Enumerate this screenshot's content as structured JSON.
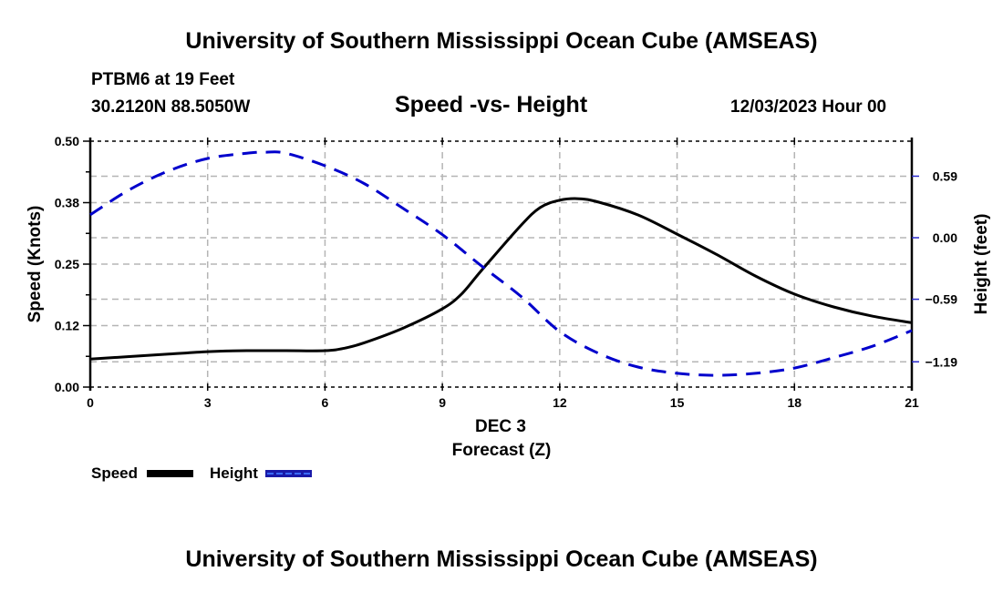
{
  "header": {
    "title": "University of Southern Mississippi Ocean Cube (AMSEAS)",
    "station": "PTBM6 at 19 Feet",
    "coords": "30.2120N  88.5050W",
    "datetime": "12/03/2023 Hour 00"
  },
  "footer": {
    "title": "University of Southern Mississippi Ocean Cube (AMSEAS)"
  },
  "legend": {
    "items": [
      {
        "label": "Speed",
        "color": "#000000",
        "style": "solid"
      },
      {
        "label": "Height",
        "color": "#0000cc",
        "style": "dashed"
      }
    ]
  },
  "chart_data": {
    "type": "line",
    "title": "Speed -vs- Height",
    "xlabel": "Forecast (Z)",
    "xlabel_date": "DEC 3",
    "ylabel": "Speed (Knots)",
    "y2label": "Height (feet)",
    "xlim": [
      0,
      21
    ],
    "ylim": [
      0,
      0.5
    ],
    "y2lim": [
      -1.49,
      0.87
    ],
    "x_ticks": [
      0,
      3,
      6,
      9,
      12,
      15,
      18,
      21
    ],
    "x_tick_labels": [
      "0",
      "3",
      "6",
      "9",
      "12",
      "15",
      "18",
      "21"
    ],
    "y_ticks": [
      0,
      0.125,
      0.25,
      0.375,
      0.5
    ],
    "y_tick_labels": [
      "0.00",
      "0.12",
      "0.25",
      "0.38",
      "0.50"
    ],
    "y2_ticks": [
      0.59,
      0,
      -0.59,
      -1.19
    ],
    "y2_tick_labels": [
      "0.59",
      "0.00",
      "−0.59",
      "−1.19"
    ],
    "grid": true,
    "legend_position": "bottom-left",
    "series": [
      {
        "name": "Speed",
        "axis": "left",
        "color": "#000000",
        "dash": "solid",
        "x": [
          0,
          1,
          2,
          3,
          4,
          5,
          6,
          6.5,
          7,
          8,
          9,
          9.5,
          10,
          11,
          11.5,
          12,
          12.5,
          13,
          14,
          15,
          16,
          17,
          18,
          19,
          20,
          21
        ],
        "values": [
          0.057,
          0.062,
          0.067,
          0.072,
          0.074,
          0.074,
          0.074,
          0.079,
          0.09,
          0.12,
          0.159,
          0.19,
          0.237,
          0.328,
          0.365,
          0.38,
          0.383,
          0.376,
          0.35,
          0.311,
          0.27,
          0.226,
          0.189,
          0.163,
          0.144,
          0.131
        ]
      },
      {
        "name": "Height",
        "axis": "right",
        "color": "#0000cc",
        "dash": "dashed",
        "x": [
          0,
          1,
          2,
          3,
          4,
          4.5,
          5,
          6,
          7,
          8,
          9,
          10,
          11,
          12,
          13,
          14,
          15,
          16,
          17,
          18,
          19,
          20,
          21
        ],
        "values": [
          0.22,
          0.46,
          0.64,
          0.76,
          0.81,
          0.82,
          0.81,
          0.69,
          0.52,
          0.28,
          0.03,
          -0.27,
          -0.56,
          -0.9,
          -1.11,
          -1.24,
          -1.3,
          -1.32,
          -1.3,
          -1.25,
          -1.15,
          -1.04,
          -0.89
        ]
      }
    ]
  }
}
